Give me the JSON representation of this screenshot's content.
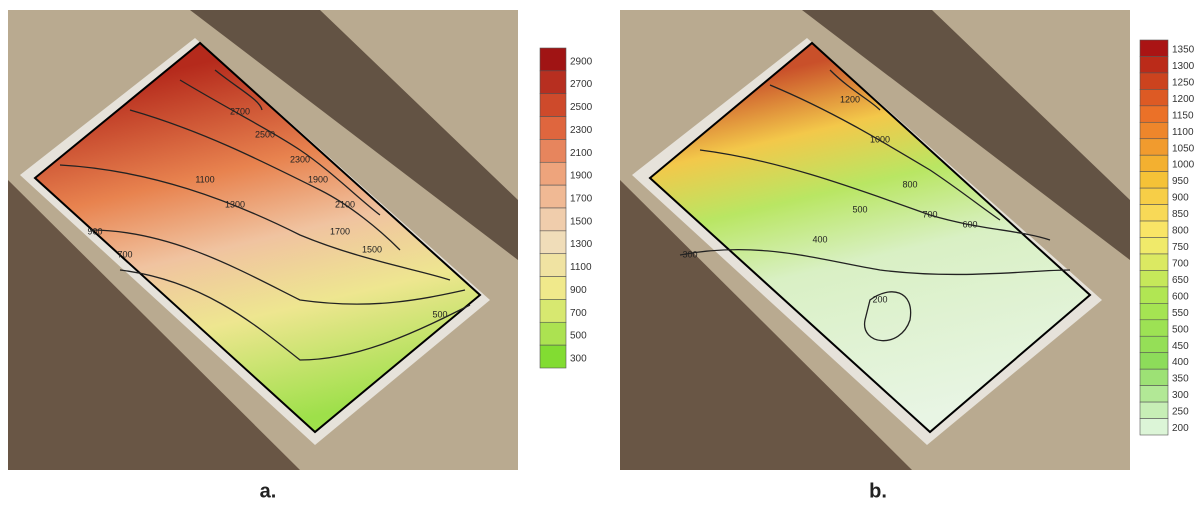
{
  "panels": [
    {
      "caption": "a.",
      "legend": [
        "2900",
        "2700",
        "2500",
        "2300",
        "2100",
        "1900",
        "1700",
        "1500",
        "1300",
        "1100",
        "900",
        "700",
        "500",
        "300"
      ],
      "contour_labels": [
        "2700",
        "2500",
        "2300",
        "2100",
        "1900",
        "1700",
        "1500",
        "1300",
        "1100",
        "900",
        "700",
        "500"
      ]
    },
    {
      "caption": "b.",
      "legend": [
        "1350",
        "1300",
        "1250",
        "1200",
        "1150",
        "1100",
        "1050",
        "1000",
        "950",
        "900",
        "850",
        "800",
        "750",
        "700",
        "650",
        "600",
        "550",
        "500",
        "450",
        "400",
        "350",
        "300",
        "250",
        "200"
      ],
      "contour_labels": [
        "1200",
        "1000",
        "800",
        "700",
        "600",
        "500",
        "400",
        "300",
        "200"
      ]
    }
  ]
}
